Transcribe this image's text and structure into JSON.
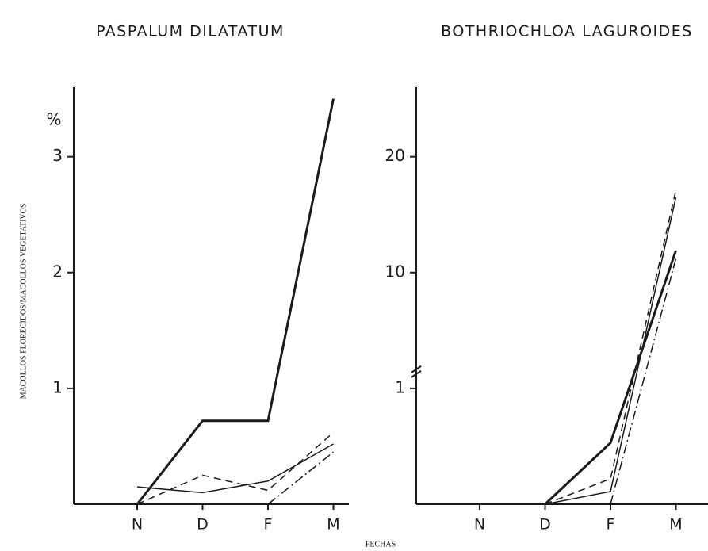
{
  "ylabel": "MACOLLOS FLORECIDOS/MACOLLOS VEGETATIVOS",
  "xlabel": "FECHAS",
  "chart_data": [
    {
      "type": "line",
      "title": "PASPALUM DILATATUM",
      "unit_label": "%",
      "categories": [
        "N",
        "D",
        "F",
        "M"
      ],
      "ylim": [
        0,
        3.6
      ],
      "yticks": [
        1,
        2,
        3
      ],
      "axis_break": false,
      "series": [
        {
          "style": "thick",
          "color": "#1a1a1a",
          "values": [
            0,
            0.72,
            0.72,
            3.5
          ]
        },
        {
          "style": "solid",
          "color": "#1a1a1a",
          "values": [
            0.15,
            0.1,
            0.2,
            0.52
          ]
        },
        {
          "style": "dashed",
          "color": "#1a1a1a",
          "values": [
            0,
            0.25,
            0.12,
            0.62
          ]
        },
        {
          "style": "dashdot",
          "color": "#1a1a1a",
          "values": [
            null,
            null,
            0,
            0.45
          ]
        }
      ]
    },
    {
      "type": "line",
      "title": "BOTHRIOCHLOA LAGUROIDES",
      "categories": [
        "N",
        "D",
        "F",
        "M"
      ],
      "ylim": [
        0,
        26
      ],
      "yticks": [
        1,
        10,
        20
      ],
      "axis_break": true,
      "series": [
        {
          "style": "thick",
          "color": "#1a1a1a",
          "values": [
            null,
            0,
            0.53,
            11.9
          ]
        },
        {
          "style": "solid",
          "color": "#1a1a1a",
          "values": [
            null,
            0,
            0.11,
            16.5
          ]
        },
        {
          "style": "dashed",
          "color": "#1a1a1a",
          "values": [
            null,
            0,
            0.22,
            17.1
          ]
        },
        {
          "style": "dashdot",
          "color": "#1a1a1a",
          "values": [
            null,
            null,
            0,
            11.2
          ]
        }
      ]
    }
  ]
}
